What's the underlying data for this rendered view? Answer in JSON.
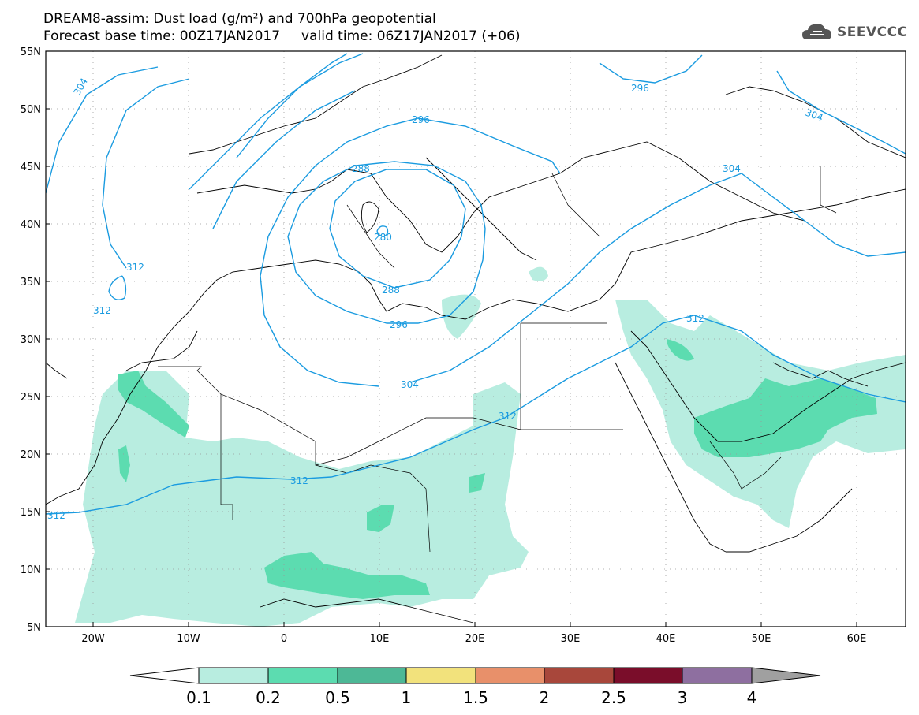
{
  "title": {
    "line1": "DREAM8-assim: Dust load (g/m²) and 700hPa geopotential",
    "line2": "Forecast base time: 00Z17JAN2017     valid time: 06Z17JAN2017 (+06)"
  },
  "logo": {
    "icon": "cloud-logo-icon",
    "text": "SEEVCCC"
  },
  "map": {
    "projection": "lat-lon",
    "lon_range": [
      -25,
      65
    ],
    "lat_range": [
      5,
      55
    ],
    "lat_ticks": [
      "55N",
      "50N",
      "45N",
      "40N",
      "35N",
      "30N",
      "25N",
      "20N",
      "15N",
      "10N",
      "5N"
    ],
    "lon_ticks": [
      "20W",
      "10W",
      "0",
      "10E",
      "20E",
      "30E",
      "40E",
      "50E",
      "60E"
    ],
    "contour_labels": [
      "304",
      "296",
      "304",
      "296",
      "288",
      "304",
      "280",
      "312",
      "312",
      "288",
      "312",
      "296",
      "304",
      "312",
      "312",
      "312"
    ],
    "colors": {
      "contour": "#1a9be0",
      "dust_01": "#b8ede0",
      "dust_02": "#5cdcb0",
      "dust_05": "#4db896"
    }
  },
  "colorbar": {
    "ticks": [
      "0.1",
      "0.2",
      "0.5",
      "1",
      "1.5",
      "2",
      "2.5",
      "3",
      "4"
    ],
    "colors": [
      "#ffffff",
      "#b8ede0",
      "#5cdcb0",
      "#4db896",
      "#f2e27c",
      "#e8906a",
      "#a8473b",
      "#7a0d2a",
      "#8e6fa0",
      "#a0a0a0"
    ]
  }
}
